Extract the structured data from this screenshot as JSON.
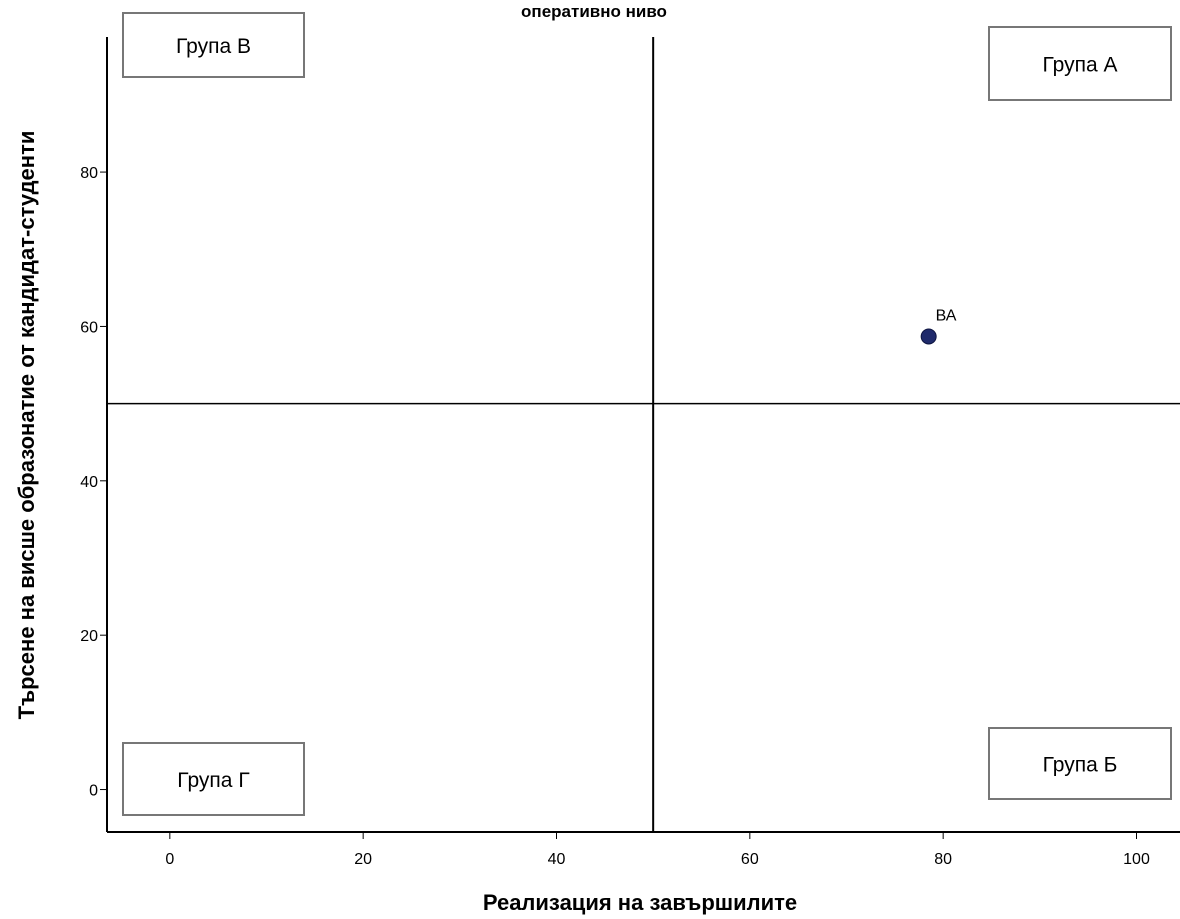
{
  "chart_data": {
    "type": "scatter",
    "title": "оперативно ниво",
    "xlabel": "Реализация на завършилите",
    "ylabel": "Търсене на висше образонатие от кандидат-студенти",
    "xlim": [
      -6.5,
      104.5
    ],
    "ylim": [
      -5.5,
      97.5
    ],
    "xticks": [
      0,
      20,
      40,
      60,
      80,
      100
    ],
    "yticks": [
      0,
      20,
      40,
      60,
      80
    ],
    "reference_lines": {
      "x": 50,
      "y": 50
    },
    "quadrant_labels": [
      {
        "text": "Група В",
        "position": "top-left"
      },
      {
        "text": "Група А",
        "position": "top-right"
      },
      {
        "text": "Група Г",
        "position": "bottom-left"
      },
      {
        "text": "Група Б",
        "position": "bottom-right"
      }
    ],
    "points": [
      {
        "label": "ВА",
        "x": 78.5,
        "y": 58.7
      }
    ],
    "point_color": "#1f2a6b",
    "grid": false
  }
}
